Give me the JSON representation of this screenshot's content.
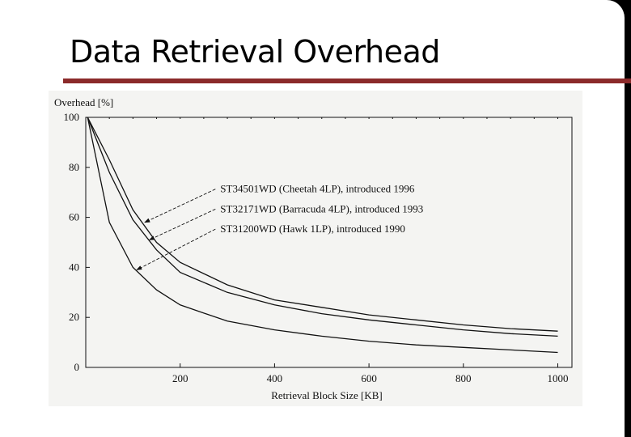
{
  "slide": {
    "title": "Data Retrieval Overhead"
  },
  "colors": {
    "background": "#000000",
    "slide": "#ffffff",
    "title_rule": "#8b2a2a",
    "figure_paper": "#f4f4f2",
    "ink": "#111111"
  },
  "chart_data": {
    "type": "line",
    "xlabel": "Retrieval Block Size [KB]",
    "ylabel": "Overhead [%]",
    "xlim": [
      0,
      1030
    ],
    "ylim": [
      0,
      100
    ],
    "x_ticks": [
      200,
      400,
      600,
      800,
      1000
    ],
    "y_ticks": [
      0,
      20,
      40,
      60,
      80,
      100
    ],
    "x_tick_labels": [
      "200",
      "400",
      "600",
      "800",
      "1000"
    ],
    "y_tick_labels": [
      "0",
      "20",
      "40",
      "60",
      "80",
      "100"
    ],
    "grid": false,
    "series": [
      {
        "name": "ST34501WD (Cheetah 4LP), introduced 1996",
        "x": [
          4,
          50,
          100,
          150,
          200,
          300,
          400,
          500,
          600,
          700,
          800,
          900,
          1000
        ],
        "y": [
          100,
          83,
          63,
          50,
          42,
          33,
          27,
          24,
          21,
          19,
          17,
          15.5,
          14.5
        ]
      },
      {
        "name": "ST32171WD (Barracuda 4LP), introduced 1993",
        "x": [
          4,
          50,
          100,
          150,
          200,
          300,
          400,
          500,
          600,
          700,
          800,
          900,
          1000
        ],
        "y": [
          100,
          78,
          59,
          47,
          38,
          30,
          25,
          21.5,
          19,
          17,
          15,
          13.5,
          12.5
        ]
      },
      {
        "name": "ST31200WD (Hawk 1LP), introduced 1990",
        "x": [
          4,
          50,
          100,
          150,
          200,
          300,
          400,
          500,
          600,
          700,
          800,
          900,
          1000
        ],
        "y": [
          100,
          58,
          40,
          31,
          25,
          18.5,
          15,
          12.5,
          10.5,
          9,
          8,
          7,
          6
        ]
      }
    ],
    "annotations": [
      {
        "series": 0,
        "text": "ST34501WD (Cheetah 4LP), introduced 1996",
        "text_x": 285,
        "text_y": 70,
        "arrow_to_x": 125,
        "arrow_to_y": 58
      },
      {
        "series": 1,
        "text": "ST32171WD (Barracuda 4LP), introduced 1993",
        "text_x": 285,
        "text_y": 62,
        "arrow_to_x": 135,
        "arrow_to_y": 51
      },
      {
        "series": 2,
        "text": "ST31200WD (Hawk 1LP), introduced 1990",
        "text_x": 285,
        "text_y": 54,
        "arrow_to_x": 108,
        "arrow_to_y": 39
      }
    ]
  }
}
